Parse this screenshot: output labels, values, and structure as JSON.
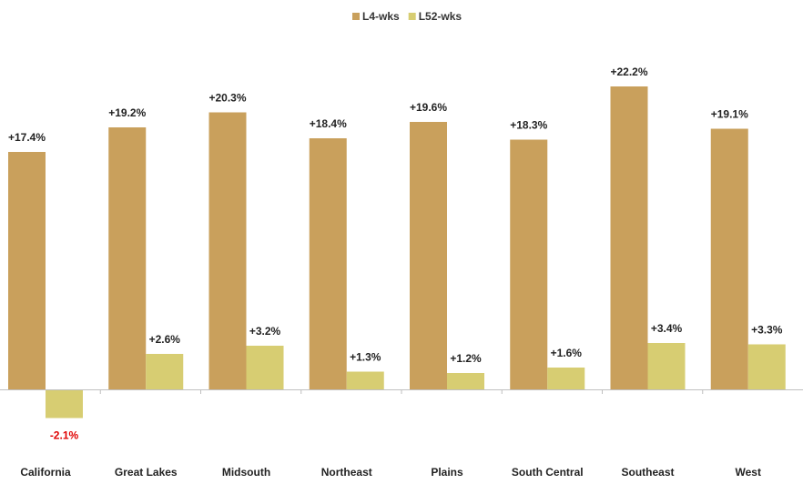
{
  "chart_data": {
    "type": "bar",
    "title": "",
    "xlabel": "",
    "ylabel": "",
    "categories": [
      "California",
      "Great Lakes",
      "Midsouth",
      "Northeast",
      "Plains",
      "South Central",
      "Southeast",
      "West"
    ],
    "series": [
      {
        "name": "L4-wks",
        "color": "#C9A05C",
        "values": [
          17.4,
          19.2,
          20.3,
          18.4,
          19.6,
          18.3,
          22.2,
          19.1
        ],
        "labels": [
          "+17.4%",
          "+19.2%",
          "+20.3%",
          "+18.4%",
          "+19.6%",
          "+18.3%",
          "+22.2%",
          "+19.1%"
        ]
      },
      {
        "name": "L52-wks",
        "color": "#D7CD72",
        "values": [
          -2.1,
          2.6,
          3.2,
          1.3,
          1.2,
          1.6,
          3.4,
          3.3
        ],
        "labels": [
          "-2.1%",
          "+2.6%",
          "+3.2%",
          "+1.3%",
          "+1.2%",
          "+1.6%",
          "+3.4%",
          "+3.3%"
        ]
      }
    ],
    "negative_label_color": "#E00000",
    "legend_position": "top-center",
    "grid": false,
    "ylim": [
      -3,
      24
    ]
  }
}
